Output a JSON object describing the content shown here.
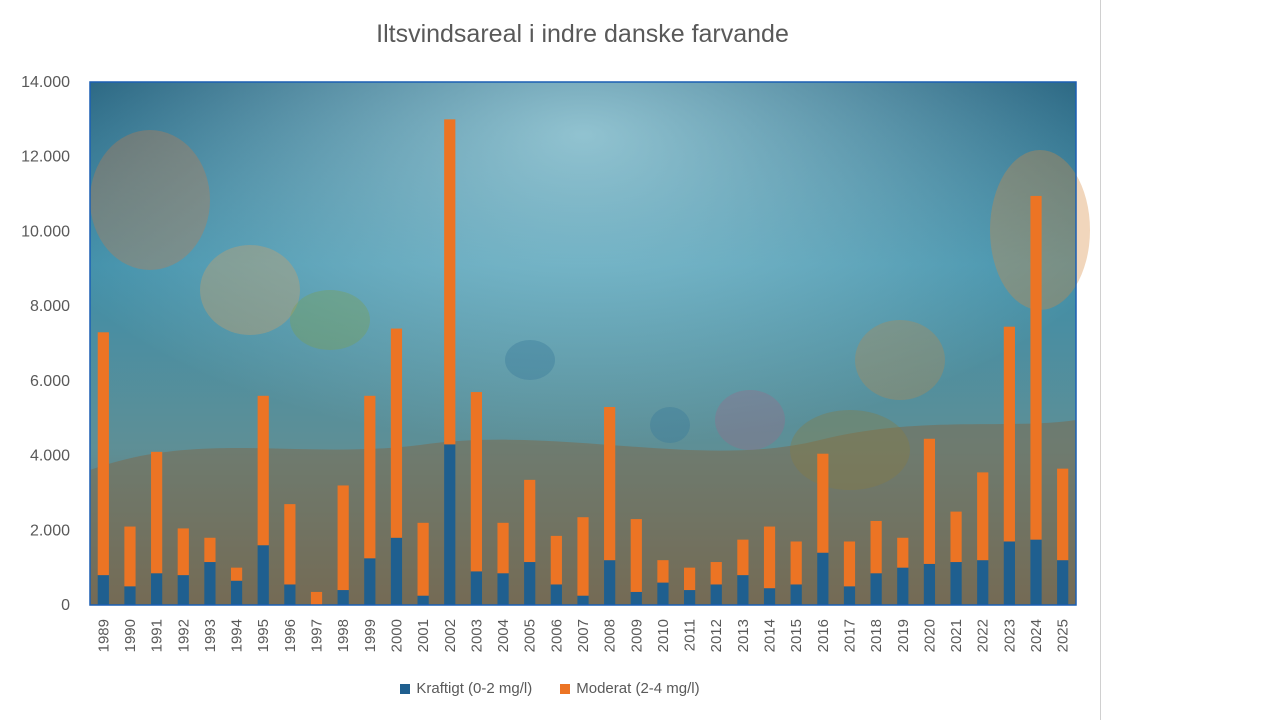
{
  "colors": {
    "kraftigt": "#1f5f8f",
    "moderat": "#ec7424",
    "axis_text": "#595959",
    "plot_border": "#1a5fb4"
  },
  "chart_data": {
    "type": "bar",
    "stacked": true,
    "title": "Iltsvindsareal i indre danske farvande",
    "xlabel": "",
    "ylabel": "",
    "ylim": [
      0,
      14000
    ],
    "yticks": [
      "0",
      "2.000",
      "4.000",
      "6.000",
      "8.000",
      "10.000",
      "12.000",
      "14.000"
    ],
    "grid": false,
    "legend_position": "bottom",
    "background": "underwater-illustration",
    "categories": [
      "1989",
      "1990",
      "1991",
      "1992",
      "1993",
      "1994",
      "1995",
      "1996",
      "1997",
      "1998",
      "1999",
      "2000",
      "2001",
      "2002",
      "2003",
      "2004",
      "2005",
      "2006",
      "2007",
      "2008",
      "2009",
      "2010",
      "2011",
      "2012",
      "2013",
      "2014",
      "2015",
      "2016",
      "2017",
      "2018",
      "2019",
      "2020",
      "2021",
      "2022",
      "2023",
      "2024",
      "2025"
    ],
    "series": [
      {
        "name": "Kraftigt (0-2 mg/l)",
        "values": [
          800,
          500,
          850,
          800,
          1150,
          650,
          1600,
          550,
          0,
          400,
          1250,
          1800,
          250,
          4300,
          900,
          850,
          1150,
          550,
          250,
          1200,
          350,
          600,
          400,
          550,
          800,
          450,
          550,
          1400,
          500,
          850,
          1000,
          1100,
          1150,
          1200,
          1700,
          1750,
          1200
        ]
      },
      {
        "name": "Moderat (2-4 mg/l)",
        "values": [
          6500,
          1600,
          3250,
          1250,
          650,
          350,
          4000,
          2150,
          350,
          2800,
          4350,
          5600,
          1950,
          8700,
          4800,
          1350,
          2200,
          1300,
          2100,
          4100,
          1950,
          600,
          600,
          600,
          950,
          1650,
          1150,
          2650,
          1200,
          1400,
          800,
          3350,
          1350,
          2350,
          5750,
          9200,
          2450
        ]
      }
    ]
  }
}
